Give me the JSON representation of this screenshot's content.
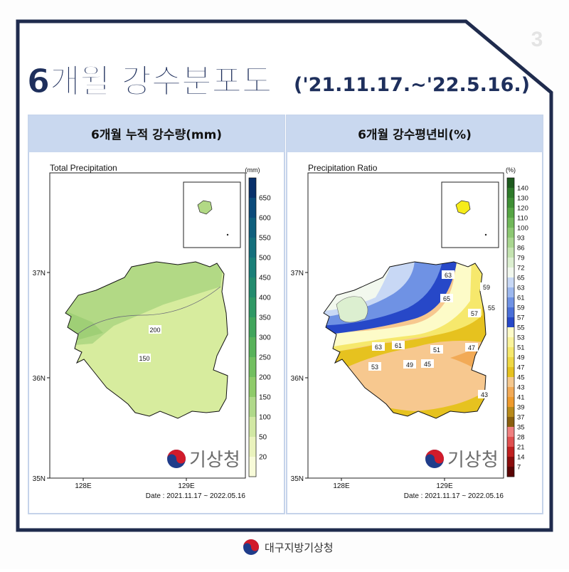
{
  "page_number": "3",
  "header": {
    "title": "6개월 강수분포도",
    "period": "('21.11.17.~'22.5.16.)"
  },
  "panels": [
    {
      "heading": "6개월 누적 강수량(mm)",
      "map_title": "Total Precipitation",
      "unit": "(mm)",
      "legend": {
        "labels": [
          650,
          600,
          550,
          500,
          450,
          400,
          350,
          300,
          250,
          200,
          150,
          100,
          50,
          20
        ],
        "colors": [
          "#08306b",
          "#0b4a7a",
          "#0f5f7d",
          "#146f7c",
          "#1a7f78",
          "#238b6e",
          "#2f9865",
          "#41a55c",
          "#58b25a",
          "#72bf60",
          "#8fcb6a",
          "#b0d98a",
          "#d2e8a4",
          "#eaf3bd",
          "#f8fbd9"
        ]
      },
      "lat_labels": [
        "37N",
        "36N",
        "35N"
      ],
      "lon_labels": [
        "128E",
        "129E"
      ],
      "contour_labels": [
        200,
        150
      ],
      "date": "Date : 2021.11.17 ~ 2022.05.16",
      "logo": "기상청"
    },
    {
      "heading": "6개월 강수평년비(%)",
      "map_title": "Precipitation Ratio",
      "unit": "(%)",
      "legend": {
        "labels": [
          140,
          130,
          120,
          110,
          100,
          93,
          86,
          79,
          72,
          65,
          63,
          61,
          59,
          57,
          55,
          53,
          51,
          49,
          47,
          45,
          43,
          41,
          39,
          37,
          35,
          28,
          21,
          14,
          7
        ],
        "colors": [
          "#1e5a1e",
          "#2e7a2a",
          "#3f8f35",
          "#56a544",
          "#71b85a",
          "#8dc873",
          "#a9d690",
          "#c4e3b0",
          "#dcefd0",
          "#f2f8ee",
          "#c8d8f5",
          "#9db8ee",
          "#6f92e4",
          "#4a6fd8",
          "#2748c8",
          "#fdfbc8",
          "#faf39a",
          "#f6e86c",
          "#efd844",
          "#e6c21f",
          "#f5c88e",
          "#f2aa56",
          "#ee9a2c",
          "#b88a1a",
          "#8a5f0e",
          "#f08080",
          "#e05050",
          "#c02020",
          "#8a0c0c",
          "#5a0404"
        ]
      },
      "lat_labels": [
        "37N",
        "36N",
        "35N"
      ],
      "lon_labels": [
        "128E",
        "129E"
      ],
      "contour_labels": [
        63,
        65,
        59,
        55,
        57,
        61,
        63,
        51,
        47,
        49,
        45,
        53,
        43
      ],
      "date": "Date : 2021.11.17 ~ 2022.05.16",
      "logo": "기상청"
    }
  ],
  "footer": "대구지방기상청"
}
